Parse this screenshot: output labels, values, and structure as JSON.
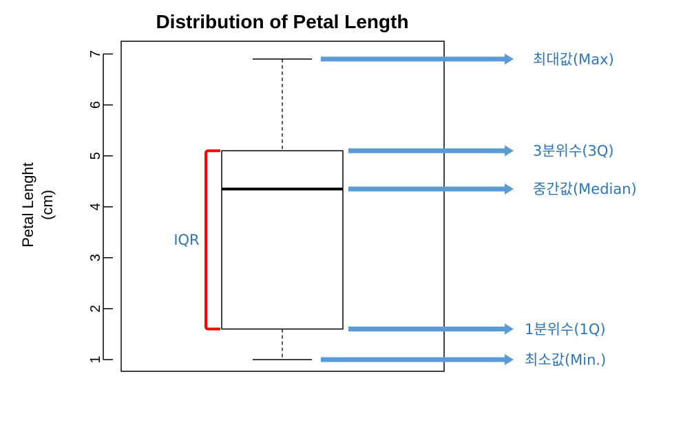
{
  "chart_data": {
    "type": "box",
    "title": "Distribution of Petal Length",
    "ylabel_lines": [
      "Petal Lenght",
      "(cm)"
    ],
    "xlabel": "",
    "ylim": [
      0.77,
      7.25
    ],
    "yticks": [
      1,
      2,
      3,
      4,
      5,
      6,
      7
    ],
    "grid": false,
    "box": {
      "min": 1.0,
      "q1": 1.6,
      "median": 4.35,
      "q3": 5.1,
      "max": 6.9
    },
    "annotations": [
      {
        "key": "max",
        "label": "최대값(Max)"
      },
      {
        "key": "q3",
        "label": "3분위수(3Q)"
      },
      {
        "key": "median",
        "label": "중간값(Median)"
      },
      {
        "key": "q1",
        "label": "1분위수(1Q)"
      },
      {
        "key": "min",
        "label": "최소값(Min.)"
      }
    ],
    "iqr_label": "IQR",
    "colors": {
      "arrow": "#5b9bd5",
      "label": "#2e75b6",
      "bracket": "#ff0000",
      "box": "#000000"
    }
  }
}
